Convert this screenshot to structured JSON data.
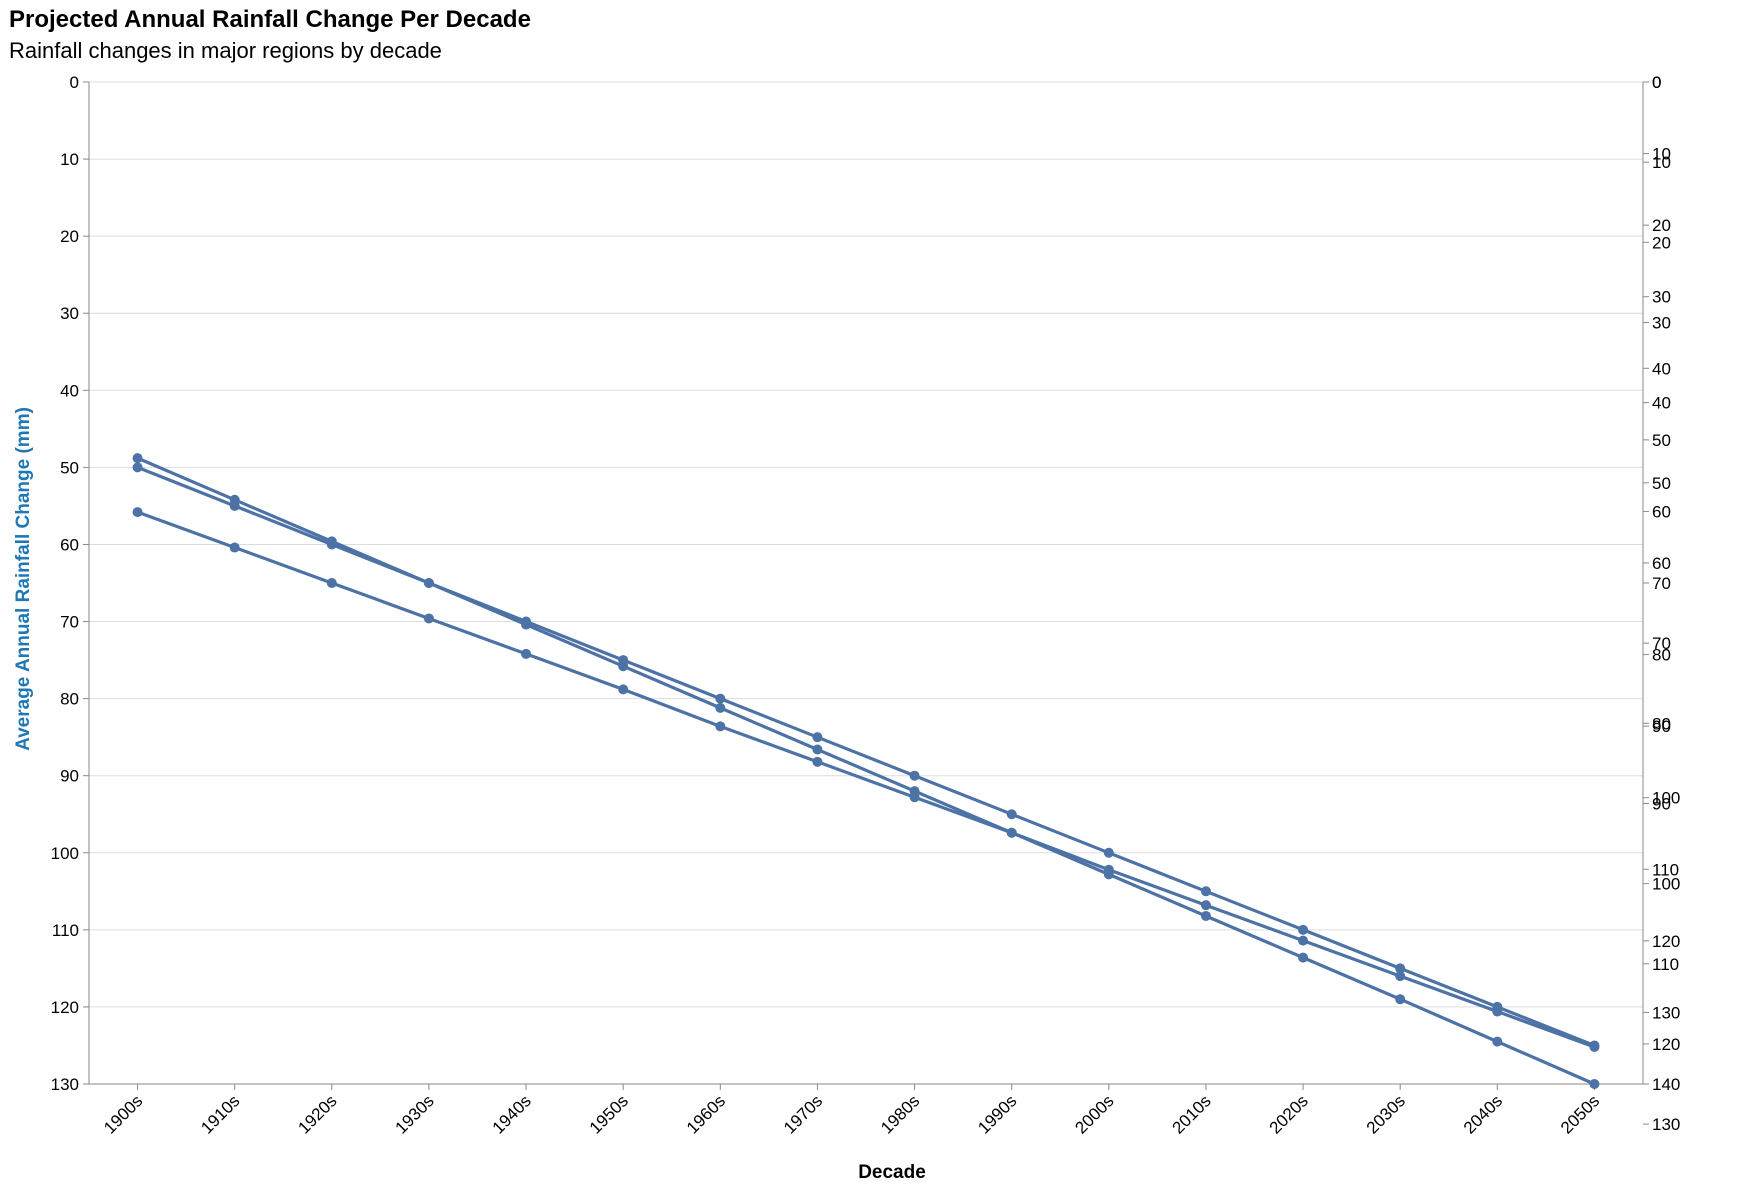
{
  "chart_data": {
    "type": "line",
    "title": "Projected Annual Rainfall Change Per Decade",
    "subtitle": "Rainfall changes in major regions by decade",
    "xlabel": "Decade",
    "ylabel": "Average Annual Rainfall Change (mm)",
    "categories": [
      "1900s",
      "1910s",
      "1920s",
      "1930s",
      "1940s",
      "1950s",
      "1960s",
      "1970s",
      "1980s",
      "1990s",
      "2000s",
      "2010s",
      "2020s",
      "2030s",
      "2040s",
      "2050s"
    ],
    "series": [
      {
        "values": [
          48.8,
          54.2,
          59.6,
          65.0,
          70.0,
          75.0,
          80.0,
          85.0,
          90.0,
          95.0,
          100.0,
          105.0,
          110.0,
          115.0,
          120.0,
          125.0
        ]
      },
      {
        "values": [
          50.0,
          55.0,
          60.0,
          65.0,
          70.4,
          75.8,
          81.2,
          86.6,
          92.0,
          97.4,
          102.2,
          106.8,
          111.4,
          116.0,
          120.6,
          125.2
        ]
      },
      {
        "values": [
          55.8,
          60.4,
          65.0,
          69.6,
          74.2,
          78.8,
          83.6,
          88.2,
          92.8,
          97.4,
          102.8,
          108.2,
          113.6,
          119.0,
          124.5,
          130.0
        ]
      }
    ],
    "ylim": [
      0,
      130
    ],
    "y_reversed": true,
    "y_ticks": [
      0,
      10,
      20,
      30,
      40,
      50,
      60,
      70,
      80,
      90,
      100,
      110,
      120,
      130
    ],
    "right_axes": [
      {
        "domain": [
          0,
          125
        ],
        "ticks": [
          0,
          10,
          20,
          30,
          40,
          50,
          60,
          70,
          80,
          90,
          100,
          110,
          120,
          130
        ]
      },
      {
        "domain": [
          0,
          140
        ],
        "ticks": [
          0,
          10,
          20,
          30,
          40,
          50,
          60,
          70,
          80,
          90,
          100,
          110,
          120,
          130,
          140
        ]
      }
    ],
    "grid": true,
    "colors": {
      "line": "#4c72a6",
      "ylabel": "#1f77b4",
      "grid": "#dddddd",
      "axis": "#888888"
    }
  }
}
